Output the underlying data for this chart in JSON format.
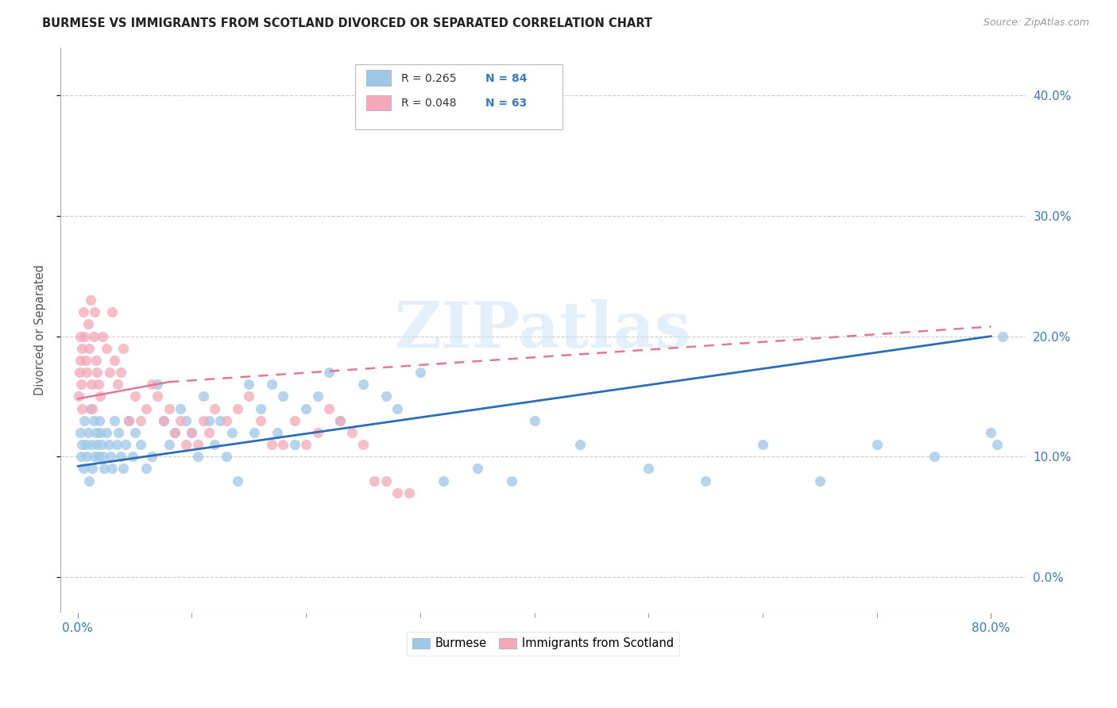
{
  "title": "BURMESE VS IMMIGRANTS FROM SCOTLAND DIVORCED OR SEPARATED CORRELATION CHART",
  "source": "Source: ZipAtlas.com",
  "ylabel_label": "Divorced or Separated",
  "xlim": [
    -1.5,
    83
  ],
  "ylim": [
    -3,
    44
  ],
  "ytick_vals": [
    0,
    10,
    20,
    30,
    40
  ],
  "burmese_color": "#9ec8e8",
  "scotland_color": "#f4a8b8",
  "burmese_edge": "#7ab0de",
  "scotland_edge": "#e888a0",
  "reg_blue_color": "#2e6db4",
  "reg_pink_color": "#e07898",
  "watermark": "ZIPatlas",
  "burmese_x": [
    0.2,
    0.3,
    0.4,
    0.5,
    0.6,
    0.7,
    0.8,
    0.9,
    1.0,
    1.1,
    1.2,
    1.3,
    1.4,
    1.5,
    1.6,
    1.7,
    1.8,
    1.9,
    2.0,
    2.1,
    2.2,
    2.3,
    2.5,
    2.7,
    2.9,
    3.0,
    3.2,
    3.4,
    3.6,
    3.8,
    4.0,
    4.2,
    4.5,
    4.8,
    5.0,
    5.5,
    6.0,
    6.5,
    7.0,
    7.5,
    8.0,
    8.5,
    9.0,
    9.5,
    10.0,
    10.5,
    11.0,
    11.5,
    12.0,
    12.5,
    13.0,
    13.5,
    14.0,
    15.0,
    15.5,
    16.0,
    17.0,
    17.5,
    18.0,
    19.0,
    20.0,
    21.0,
    22.0,
    23.0,
    25.0,
    27.0,
    28.0,
    30.0,
    32.0,
    35.0,
    38.0,
    40.0,
    44.0,
    50.0,
    55.0,
    60.0,
    65.0,
    70.0,
    75.0,
    80.0,
    80.5,
    81.0
  ],
  "burmese_y": [
    12,
    10,
    11,
    9,
    13,
    11,
    10,
    12,
    8,
    14,
    11,
    9,
    13,
    10,
    12,
    11,
    10,
    13,
    12,
    11,
    10,
    9,
    12,
    11,
    10,
    9,
    13,
    11,
    12,
    10,
    9,
    11,
    13,
    10,
    12,
    11,
    9,
    10,
    16,
    13,
    11,
    12,
    14,
    13,
    12,
    10,
    15,
    13,
    11,
    13,
    10,
    12,
    8,
    16,
    12,
    14,
    16,
    12,
    15,
    11,
    14,
    15,
    17,
    13,
    16,
    15,
    14,
    17,
    8,
    9,
    8,
    13,
    11,
    9,
    8,
    11,
    8,
    11,
    10,
    12,
    11,
    20
  ],
  "scotland_x": [
    0.1,
    0.15,
    0.2,
    0.25,
    0.3,
    0.35,
    0.4,
    0.5,
    0.6,
    0.7,
    0.8,
    0.9,
    1.0,
    1.1,
    1.2,
    1.3,
    1.4,
    1.5,
    1.6,
    1.7,
    1.8,
    2.0,
    2.2,
    2.5,
    2.8,
    3.0,
    3.2,
    3.5,
    3.8,
    4.0,
    4.5,
    5.0,
    5.5,
    6.0,
    6.5,
    7.0,
    7.5,
    8.0,
    8.5,
    9.0,
    9.5,
    10.0,
    10.5,
    11.0,
    11.5,
    12.0,
    13.0,
    14.0,
    15.0,
    16.0,
    17.0,
    18.0,
    19.0,
    20.0,
    21.0,
    22.0,
    23.0,
    24.0,
    25.0,
    26.0,
    27.0,
    28.0,
    29.0
  ],
  "scotland_y": [
    15,
    17,
    18,
    20,
    16,
    19,
    14,
    22,
    20,
    18,
    17,
    21,
    19,
    23,
    16,
    14,
    20,
    22,
    18,
    17,
    16,
    15,
    20,
    19,
    17,
    22,
    18,
    16,
    17,
    19,
    13,
    15,
    13,
    14,
    16,
    15,
    13,
    14,
    12,
    13,
    11,
    12,
    11,
    13,
    12,
    14,
    13,
    14,
    15,
    13,
    11,
    11,
    13,
    11,
    12,
    14,
    13,
    12,
    11,
    8,
    8,
    7,
    7
  ],
  "reg_blue_x0": 0,
  "reg_blue_y0": 9.2,
  "reg_blue_x1": 80,
  "reg_blue_y1": 20.0,
  "reg_pink_solid_x0": 0,
  "reg_pink_solid_y0": 14.8,
  "reg_pink_solid_x1": 8,
  "reg_pink_solid_y1": 16.2,
  "reg_pink_dash_x0": 8,
  "reg_pink_dash_y0": 16.2,
  "reg_pink_dash_x1": 80,
  "reg_pink_dash_y1": 20.8
}
